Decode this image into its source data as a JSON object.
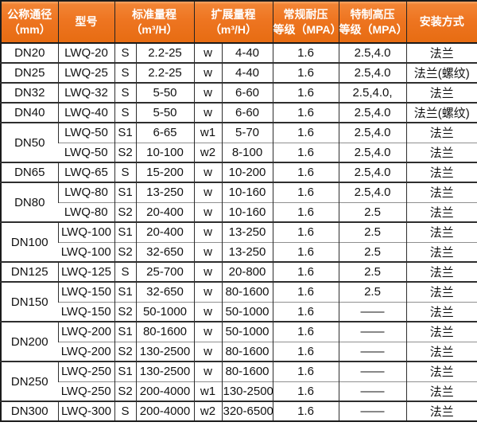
{
  "chart_data": {
    "type": "table",
    "title": "",
    "header": {
      "dn": [
        "公称通径",
        "（mm）"
      ],
      "model": "型号",
      "std": [
        "标准量程",
        "（m³/H）"
      ],
      "ext": [
        "扩展量程",
        "（m³/H）"
      ],
      "normal": [
        "常规耐压",
        "等级（MPA）"
      ],
      "special": [
        "特制高压",
        "等级（MPA）"
      ],
      "install": "安装方式"
    },
    "columns": [
      "公称通径（mm）",
      "型号",
      "标准量程（m³/H）",
      "扩展量程（m³/H）",
      "常规耐压等级（MPA）",
      "特制高压等级（MPA）",
      "安装方式"
    ],
    "rows": [
      {
        "dn": "DN20",
        "rowspan": 1,
        "group_start": true,
        "model": "LWQ-20",
        "s": "S",
        "std": "2.2-25",
        "w": "w",
        "ext": "4-40",
        "normal": "1.6",
        "special": "2.5,4.0",
        "install": "法兰"
      },
      {
        "dn": "DN25",
        "rowspan": 1,
        "group_start": true,
        "model": "LWQ-25",
        "s": "S",
        "std": "2.2-25",
        "w": "w",
        "ext": "4-40",
        "normal": "1.6",
        "special": "2.5,4.0",
        "install": "法兰(螺纹)"
      },
      {
        "dn": "DN32",
        "rowspan": 1,
        "group_start": true,
        "model": "LWQ-32",
        "s": "S",
        "std": "5-50",
        "w": "w",
        "ext": "6-60",
        "normal": "1.6",
        "special": "2.5,4.0,",
        "install": "法兰"
      },
      {
        "dn": "DN40",
        "rowspan": 1,
        "group_start": true,
        "model": "LWQ-40",
        "s": "S",
        "std": "5-50",
        "w": "w",
        "ext": "6-60",
        "normal": "1.6",
        "special": "2.5,4.0",
        "install": "法兰(螺纹)"
      },
      {
        "dn": "DN50",
        "rowspan": 2,
        "group_start": true,
        "model": "LWQ-50",
        "s": "S1",
        "std": "6-65",
        "w": "w1",
        "ext": "5-70",
        "normal": "1.6",
        "special": "2.5,4.0",
        "install": "法兰"
      },
      {
        "dn": null,
        "rowspan": 1,
        "group_start": false,
        "model": "LWQ-50",
        "s": "S2",
        "std": "10-100",
        "w": "w2",
        "ext": "8-100",
        "normal": "1.6",
        "special": "2.5,4.0",
        "install": "法兰"
      },
      {
        "dn": "DN65",
        "rowspan": 1,
        "group_start": true,
        "model": "LWQ-65",
        "s": "S",
        "std": "15-200",
        "w": "w",
        "ext": "10-200",
        "normal": "1.6",
        "special": "2.5,4.0",
        "install": "法兰"
      },
      {
        "dn": "DN80",
        "rowspan": 2,
        "group_start": true,
        "model": "LWQ-80",
        "s": "S1",
        "std": "13-250",
        "w": "w",
        "ext": "10-160",
        "normal": "1.6",
        "special": "2.5,4.0",
        "install": "法兰"
      },
      {
        "dn": null,
        "rowspan": 1,
        "group_start": false,
        "model": "LWQ-80",
        "s": "S2",
        "std": "20-400",
        "w": "w",
        "ext": "10-160",
        "normal": "1.6",
        "special": "2.5",
        "install": "法兰"
      },
      {
        "dn": "DN100",
        "rowspan": 2,
        "group_start": true,
        "model": "LWQ-100",
        "s": "S1",
        "std": "20-400",
        "w": "w",
        "ext": "13-250",
        "normal": "1.6",
        "special": "2.5",
        "install": "法兰"
      },
      {
        "dn": null,
        "rowspan": 1,
        "group_start": false,
        "model": "LWQ-100",
        "s": "S2",
        "std": "32-650",
        "w": "w",
        "ext": "13-250",
        "normal": "1.6",
        "special": "2.5",
        "install": "法兰"
      },
      {
        "dn": "DN125",
        "rowspan": 1,
        "group_start": true,
        "model": "LWQ-125",
        "s": "S",
        "std": "25-700",
        "w": "w",
        "ext": "20-800",
        "normal": "1.6",
        "special": "2.5",
        "install": "法兰"
      },
      {
        "dn": "DN150",
        "rowspan": 2,
        "group_start": true,
        "model": "LWQ-150",
        "s": "S1",
        "std": "32-650",
        "w": "w",
        "ext": "80-1600",
        "normal": "1.6",
        "special": "2.5",
        "install": "法兰"
      },
      {
        "dn": null,
        "rowspan": 1,
        "group_start": false,
        "model": "LWQ-150",
        "s": "S2",
        "std": "50-1000",
        "w": "w",
        "ext": "50-1000",
        "normal": "1.6",
        "special": "——",
        "install": "法兰"
      },
      {
        "dn": "DN200",
        "rowspan": 2,
        "group_start": true,
        "model": "LWQ-200",
        "s": "S1",
        "std": "80-1600",
        "w": "w",
        "ext": "50-1000",
        "normal": "1.6",
        "special": "——",
        "install": "法兰"
      },
      {
        "dn": null,
        "rowspan": 1,
        "group_start": false,
        "model": "LWQ-200",
        "s": "S2",
        "std": "130-2500",
        "w": "w",
        "ext": "80-1600",
        "normal": "1.6",
        "special": "——",
        "install": "法兰"
      },
      {
        "dn": "DN250",
        "rowspan": 2,
        "group_start": true,
        "model": "LWQ-250",
        "s": "S1",
        "std": "130-2500",
        "w": "w",
        "ext": "80-1600",
        "normal": "1.6",
        "special": "——",
        "install": "法兰"
      },
      {
        "dn": null,
        "rowspan": 1,
        "group_start": false,
        "model": "LWQ-250",
        "s": "S2",
        "std": "200-4000",
        "w": "w1",
        "ext": "130-2500",
        "normal": "1.6",
        "special": "——",
        "install": "法兰"
      },
      {
        "dn": "DN300",
        "rowspan": 1,
        "group_start": true,
        "model": "LWQ-300",
        "s": "S",
        "std": "200-4000",
        "w": "w2",
        "ext": "320-6500",
        "normal": "1.6",
        "special": "——",
        "install": "法兰"
      }
    ]
  },
  "colors": {
    "header_orange": "#ee7521",
    "header_orange_light": "#f9a869",
    "header_orange_dark": "#e76c12",
    "header_text": "#ffffff",
    "body_text": "#111111",
    "border_dark": "#2e2e2e",
    "border_light": "#8f8f8f",
    "row_background": "#ffffff"
  }
}
